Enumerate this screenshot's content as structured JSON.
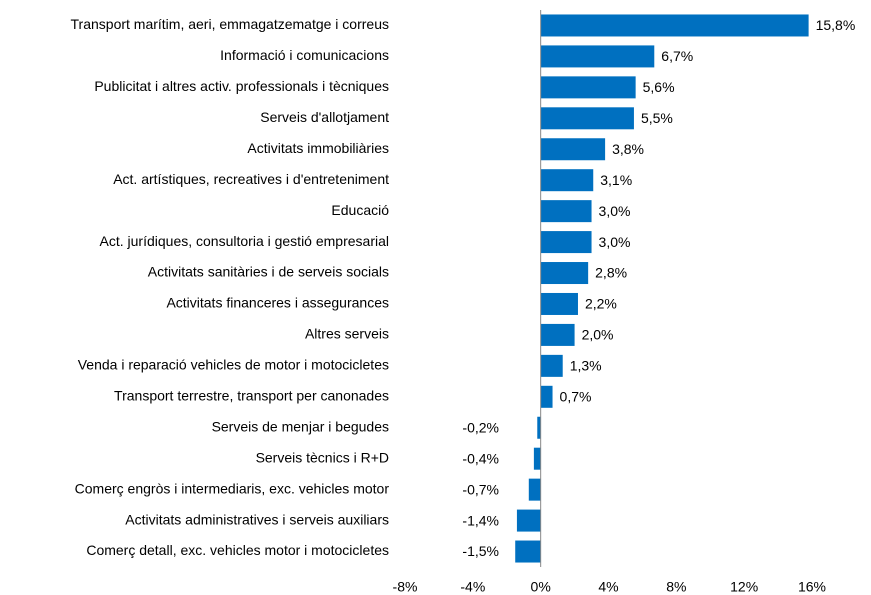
{
  "chart_data": {
    "type": "hbar",
    "categories": [
      "Transport marítim, aeri, emmagatzematge i correus",
      "Informació i comunicacions",
      "Publicitat i altres activ. professionals i tècniques",
      "Serveis d'allotjament",
      "Activitats immobiliàries",
      "Act. artístiques, recreatives i d'entreteniment",
      "Educació",
      "Act. jurídiques, consultoria i gestió empresarial",
      "Activitats sanitàries i de serveis socials",
      "Activitats financeres i assegurances",
      "Altres serveis",
      "Venda i reparació vehicles de motor i motocicletes",
      "Transport terrestre, transport per canonades",
      "Serveis de menjar i begudes",
      "Serveis tècnics i R+D",
      "Comerç engròs i intermediaris, exc. vehicles motor",
      "Activitats administratives i serveis auxiliars",
      "Comerç detall, exc. vehicles motor i motocicletes"
    ],
    "values": [
      15.8,
      6.7,
      5.6,
      5.5,
      3.8,
      3.1,
      3.0,
      3.0,
      2.8,
      2.2,
      2.0,
      1.3,
      0.7,
      -0.2,
      -0.4,
      -0.7,
      -1.4,
      -1.5
    ],
    "value_labels": [
      "15,8%",
      "6,7%",
      "5,6%",
      "5,5%",
      "3,8%",
      "3,1%",
      "3,0%",
      "3,0%",
      "2,8%",
      "2,2%",
      "2,0%",
      "1,3%",
      "0,7%",
      "-0,2%",
      "-0,4%",
      "-0,7%",
      "-1,4%",
      "-1,5%"
    ],
    "color": "#0070c0",
    "xlim": [
      -8,
      16
    ],
    "xticks": [
      {
        "value": -8,
        "label": "-8%"
      },
      {
        "value": -4,
        "label": "-4%"
      },
      {
        "value": 0,
        "label": "0%"
      },
      {
        "value": 4,
        "label": "4%"
      },
      {
        "value": 8,
        "label": "8%"
      },
      {
        "value": 12,
        "label": "12%"
      },
      {
        "value": 16,
        "label": "16%"
      }
    ]
  }
}
